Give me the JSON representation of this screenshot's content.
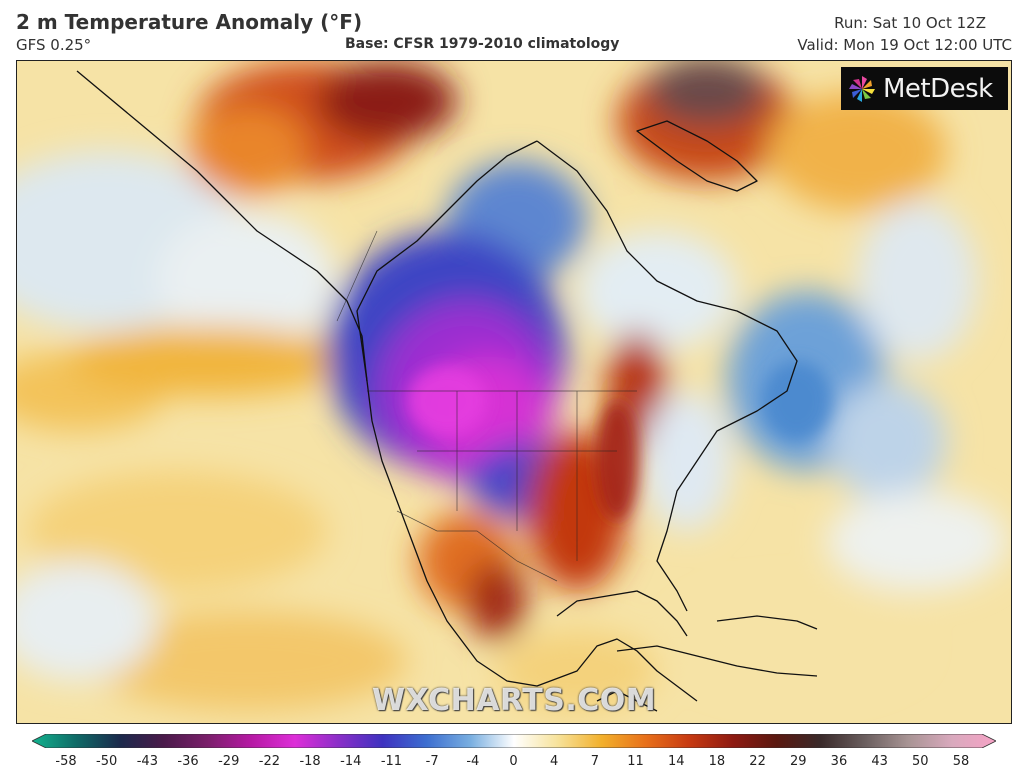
{
  "header": {
    "title": "2 m Temperature Anomaly (°F)",
    "model": "GFS 0.25°",
    "base": "Base: CFSR 1979-2010 climatology",
    "run": "Run: Sat 10 Oct 12Z",
    "valid": "Valid: Mon 19 Oct 12:00 UTC"
  },
  "logo": {
    "text": "MetDesk",
    "icon": "metdesk-pinwheel-icon"
  },
  "watermark": "WXCHARTS.COM",
  "legend": {
    "ticks": [
      "-58",
      "-50",
      "-43",
      "-36",
      "-29",
      "-22",
      "-18",
      "-14",
      "-11",
      "-7",
      "-4",
      "0",
      "4",
      "7",
      "11",
      "14",
      "18",
      "22",
      "29",
      "36",
      "43",
      "50",
      "58"
    ],
    "colors": [
      "#13b48f",
      "#0f6b67",
      "#1b2a4c",
      "#4a1a4a",
      "#7a1f6a",
      "#b619a4",
      "#dd2ed8",
      "#8a2fc8",
      "#3e32c0",
      "#3d6ed0",
      "#78aee0",
      "#ffffff",
      "#f7e29a",
      "#f2b02c",
      "#e8701a",
      "#c73a12",
      "#8e1a12",
      "#5a1810",
      "#3a2a2a",
      "#6a5e5e",
      "#a89494",
      "#d9a9bd",
      "#f6a2c5"
    ]
  },
  "map": {
    "regions": [
      "Alaska",
      "Canada",
      "Greenland",
      "United States",
      "Mexico",
      "Central America",
      "Caribbean"
    ],
    "coldest_anomaly_region": "Northern Plains and Rockies",
    "warmest_anomaly_region": "Greenland and Northwest Canada"
  }
}
